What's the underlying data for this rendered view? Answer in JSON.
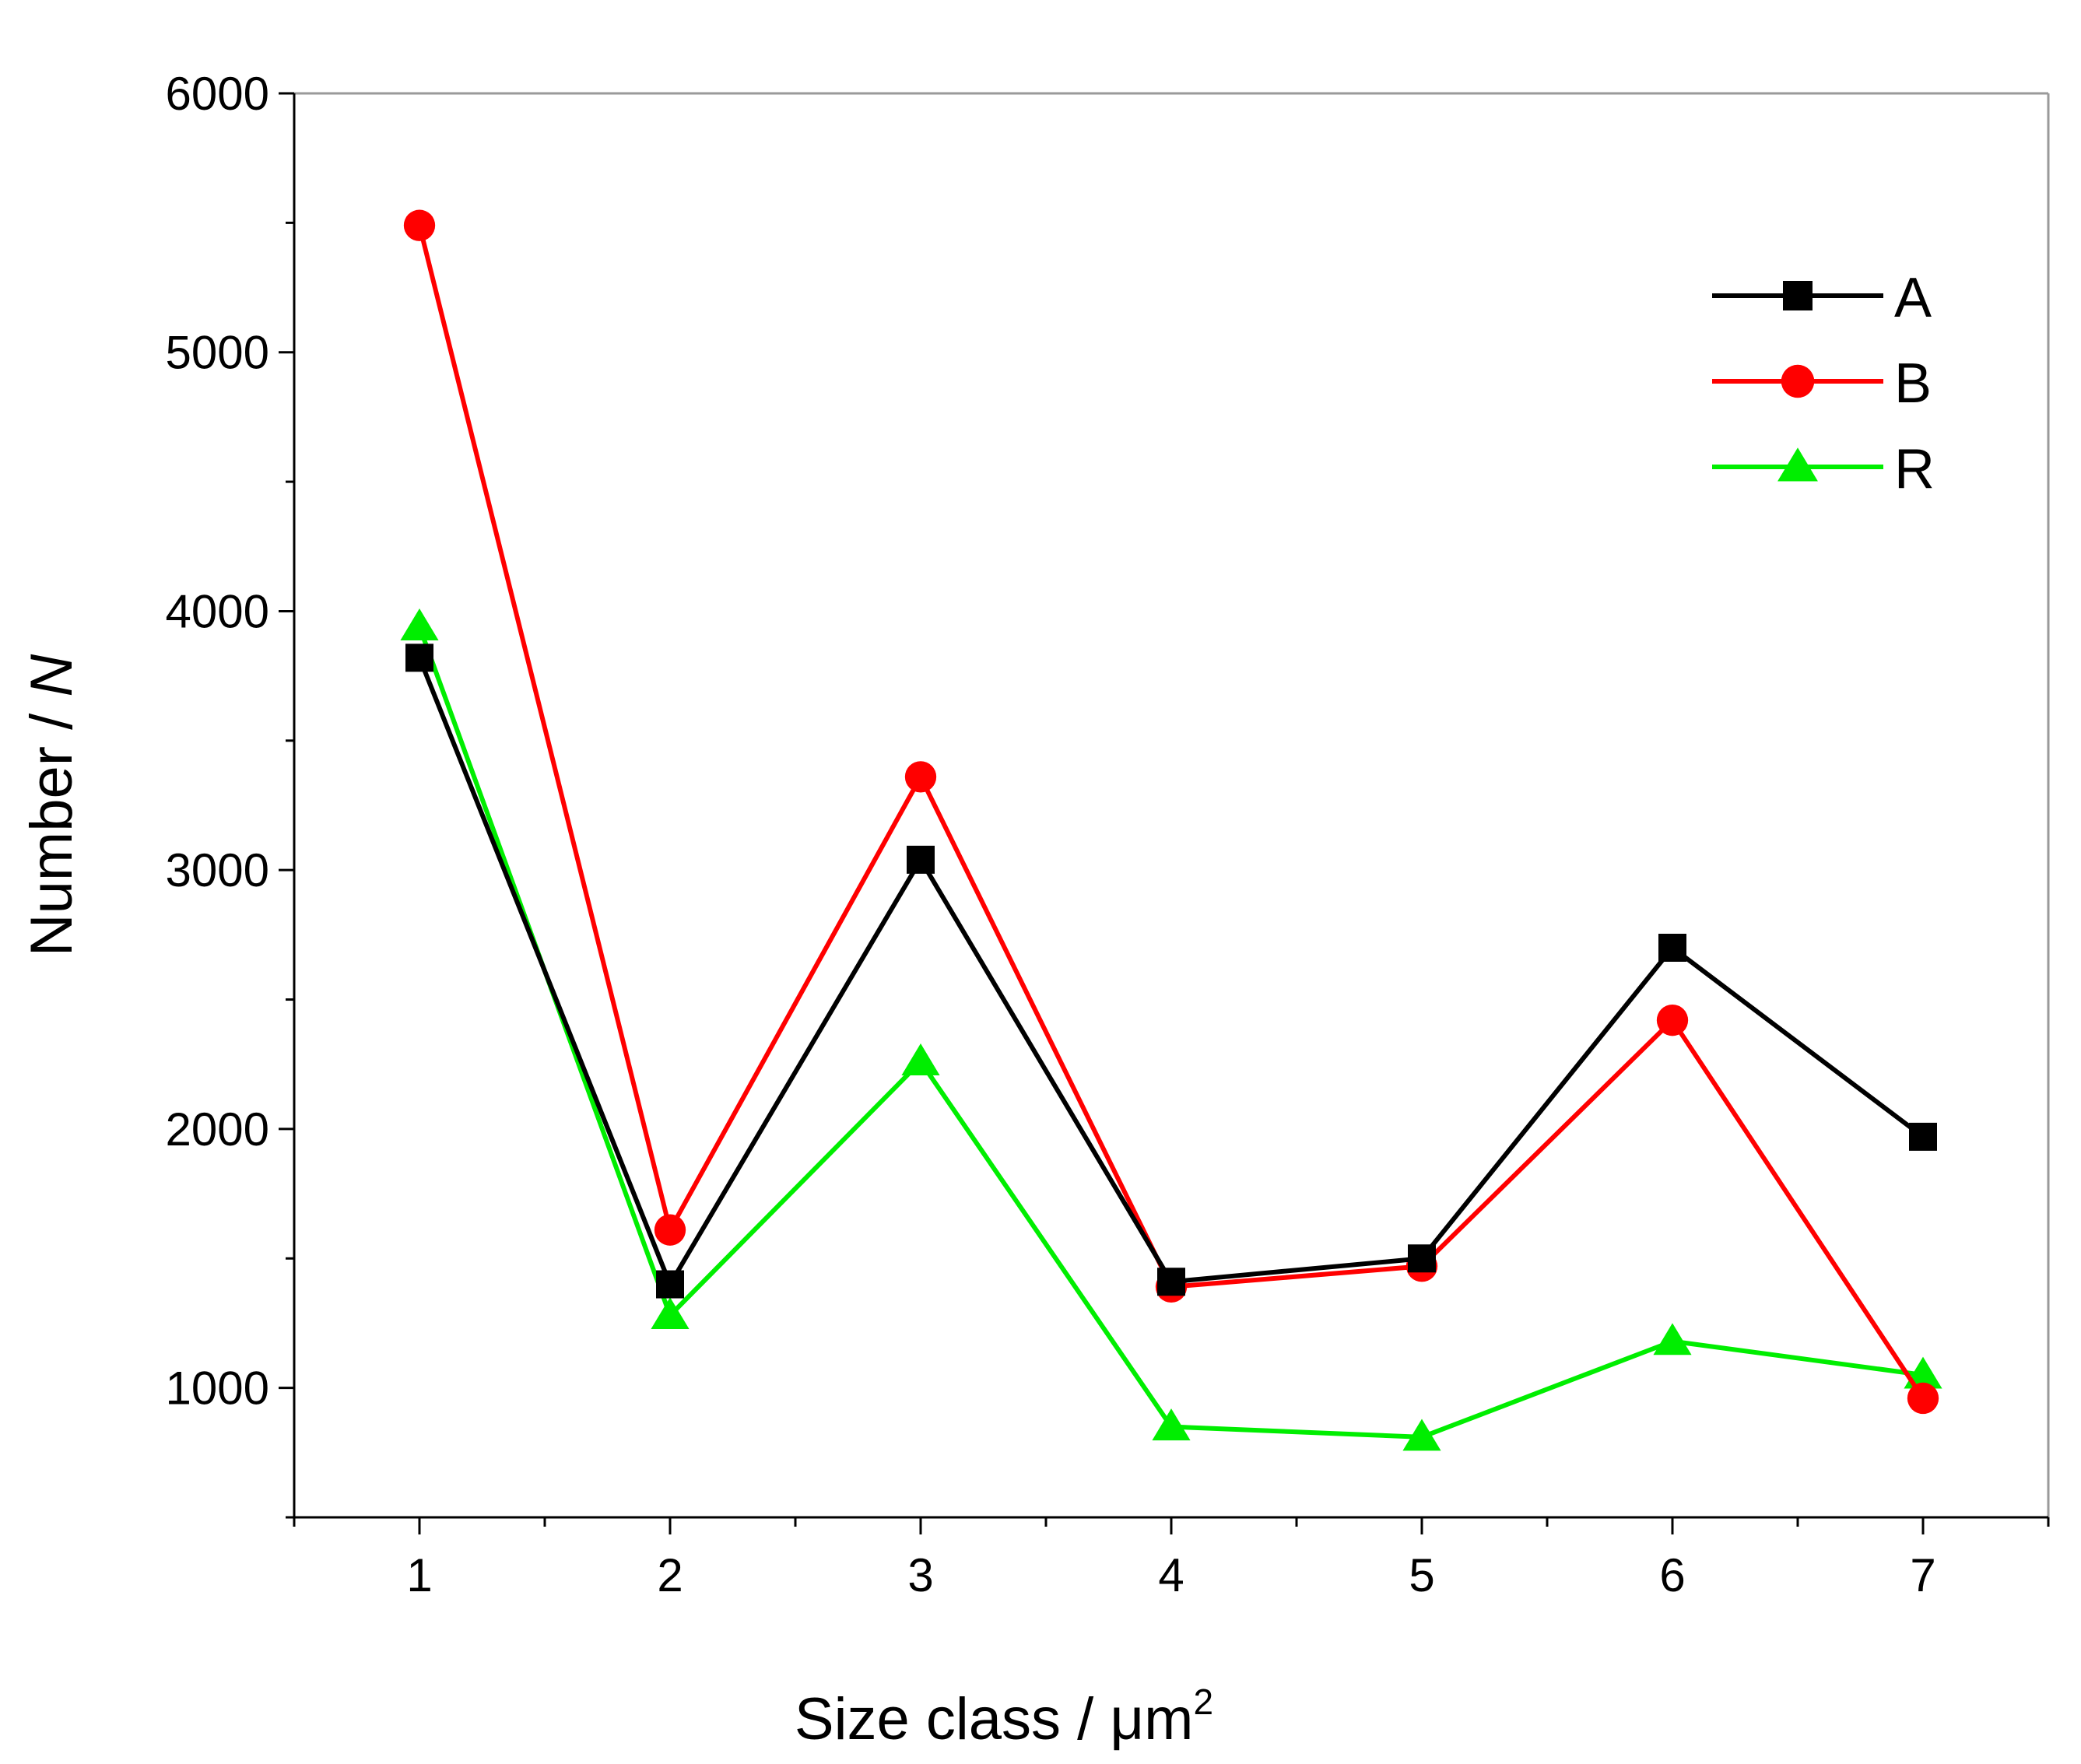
{
  "chart_data": {
    "type": "line",
    "x": [
      1,
      2,
      3,
      4,
      5,
      6,
      7
    ],
    "series": [
      {
        "name": "A",
        "color": "#000000",
        "marker": "square",
        "values": [
          3820,
          1400,
          3040,
          1410,
          1500,
          2700,
          1970
        ]
      },
      {
        "name": "B",
        "color": "#ff0000",
        "marker": "circle",
        "values": [
          5490,
          1610,
          3360,
          1390,
          1470,
          2420,
          960
        ]
      },
      {
        "name": "R",
        "color": "#00ee00",
        "marker": "triangle",
        "values": [
          3940,
          1280,
          2260,
          850,
          810,
          1180,
          1050
        ]
      }
    ],
    "xlabel": {
      "main": "Size class / μm",
      "superscript": "2"
    },
    "ylabel": {
      "main": "Number / ",
      "italic": "N"
    },
    "xlim": [
      0.5,
      7.5
    ],
    "ylim": [
      500,
      6000
    ],
    "xticks": [
      1,
      2,
      3,
      4,
      5,
      6,
      7
    ],
    "yticks": [
      1000,
      2000,
      3000,
      4000,
      5000,
      6000
    ],
    "grid": false,
    "legend_position": "top-right"
  }
}
